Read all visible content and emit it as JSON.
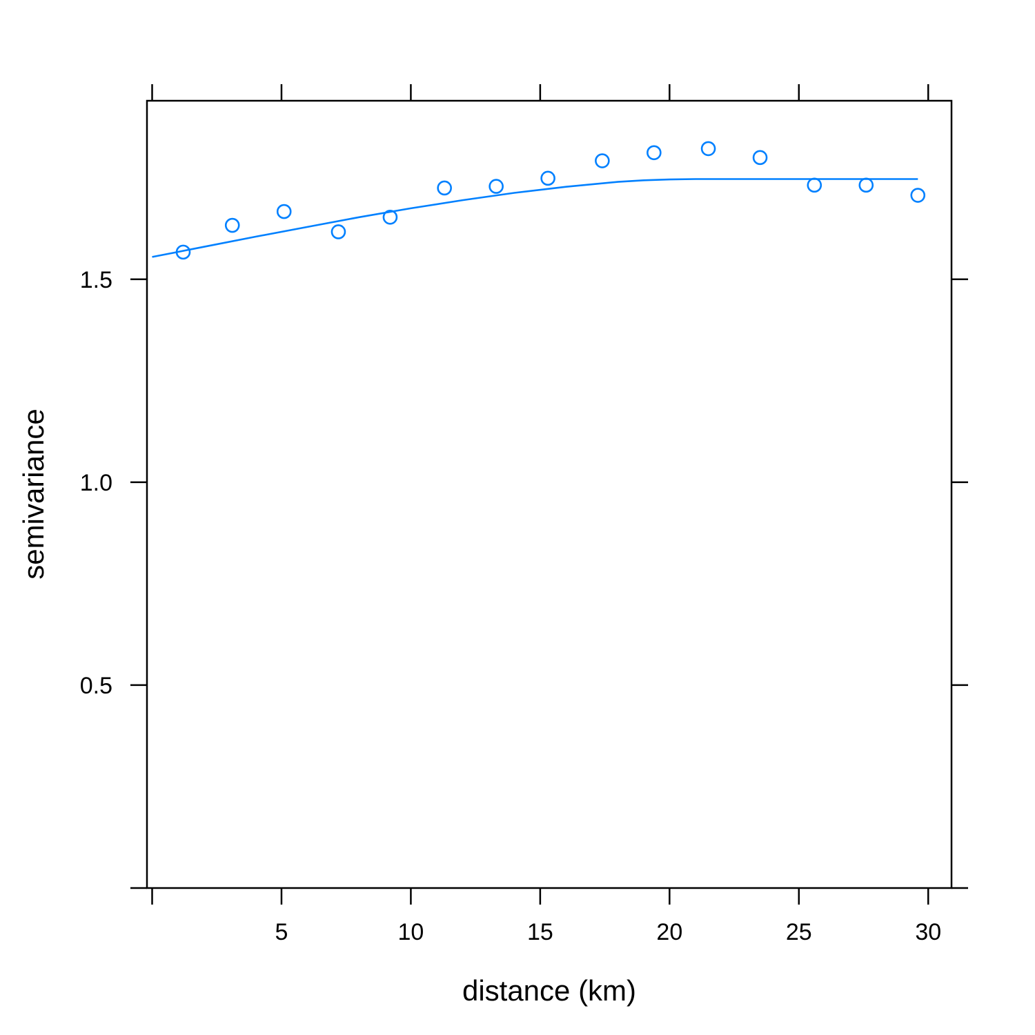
{
  "chart_data": {
    "type": "scatter",
    "xlabel": "distance (km)",
    "ylabel": "semivariance",
    "xlim": [
      -0.2,
      30.9
    ],
    "ylim": [
      0.0,
      1.94
    ],
    "x_ticks": [
      5,
      10,
      15,
      20,
      25,
      30
    ],
    "x_tick_labels": [
      "5",
      "10",
      "15",
      "20",
      "25",
      "30"
    ],
    "y_ticks": [
      0.5,
      1.0,
      1.5
    ],
    "y_tick_labels": [
      "0.5",
      "1.0",
      "1.5"
    ],
    "grid": false,
    "legend": "none",
    "point_color": "#0080ff",
    "line_color": "#0080ff",
    "points": {
      "x": [
        1.2,
        3.1,
        5.1,
        7.2,
        9.2,
        11.3,
        13.3,
        15.3,
        17.4,
        19.4,
        21.5,
        23.5,
        25.6,
        27.6,
        29.6
      ],
      "y": [
        1.567,
        1.633,
        1.667,
        1.617,
        1.653,
        1.725,
        1.729,
        1.749,
        1.792,
        1.812,
        1.822,
        1.8,
        1.732,
        1.732,
        1.707
      ]
    },
    "fitted_model": {
      "x": [
        0,
        2,
        4,
        6,
        8,
        10,
        12,
        14,
        16,
        18,
        19,
        20,
        21,
        22,
        25,
        29.6
      ],
      "y": [
        1.555,
        1.58,
        1.605,
        1.629,
        1.653,
        1.675,
        1.695,
        1.713,
        1.728,
        1.74,
        1.744,
        1.746,
        1.747,
        1.747,
        1.747,
        1.747
      ]
    }
  }
}
